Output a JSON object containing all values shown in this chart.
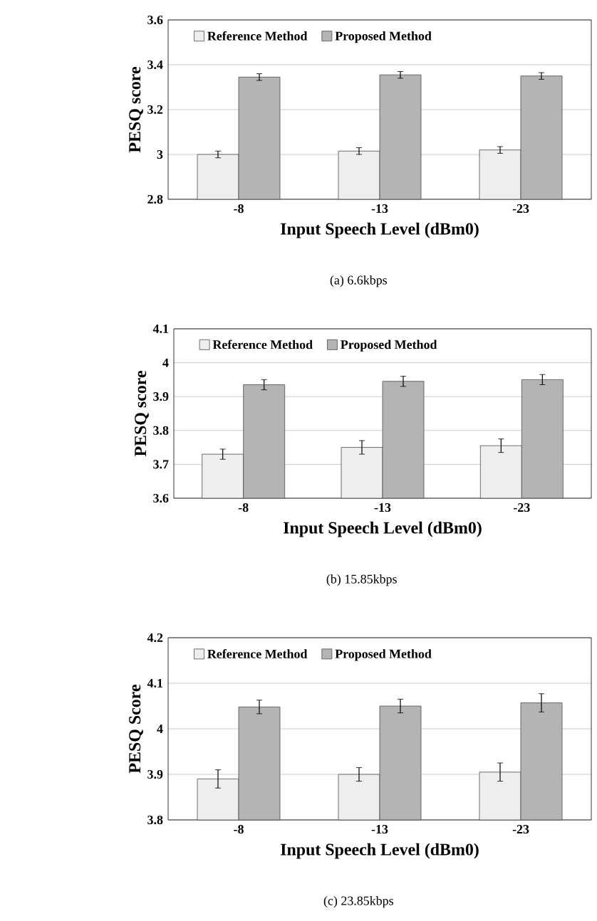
{
  "chart_data": [
    {
      "type": "bar",
      "categories": [
        "-8",
        "-13",
        "-23"
      ],
      "xlabel": "Input Speech Level (dBm0)",
      "ylabel": "PESQ score",
      "ylim": [
        2.8,
        3.6
      ],
      "yticks": [
        2.8,
        3,
        3.2,
        3.4,
        3.6
      ],
      "grid": "y",
      "legend": "top left",
      "annotations": [
        "(a) 6.6kbps"
      ],
      "series": [
        {
          "name": "Reference Method",
          "color": "#eeeeee",
          "values": [
            3.0,
            3.015,
            3.02
          ],
          "errors": [
            0.015,
            0.015,
            0.015
          ]
        },
        {
          "name": "Proposed Method",
          "color": "#b4b4b4",
          "values": [
            3.345,
            3.355,
            3.35
          ],
          "errors": [
            0.015,
            0.015,
            0.015
          ]
        }
      ]
    },
    {
      "type": "bar",
      "categories": [
        "-8",
        "-13",
        "-23"
      ],
      "xlabel": "Input Speech Level (dBm0)",
      "ylabel": "PESQ score",
      "ylim": [
        3.6,
        4.1
      ],
      "yticks": [
        3.6,
        3.7,
        3.8,
        3.9,
        4,
        4.1
      ],
      "grid": "y",
      "legend": "top left",
      "annotations": [
        "(b) 15.85kbps"
      ],
      "series": [
        {
          "name": "Reference Method",
          "color": "#eeeeee",
          "values": [
            3.73,
            3.75,
            3.755
          ],
          "errors": [
            0.015,
            0.02,
            0.02
          ]
        },
        {
          "name": "Proposed Method",
          "color": "#b4b4b4",
          "values": [
            3.935,
            3.945,
            3.95
          ],
          "errors": [
            0.015,
            0.015,
            0.015
          ]
        }
      ]
    },
    {
      "type": "bar",
      "categories": [
        "-8",
        "-13",
        "-23"
      ],
      "xlabel": "Input Speech Level (dBm0)",
      "ylabel": "PESQ Score",
      "ylim": [
        3.8,
        4.2
      ],
      "yticks": [
        3.8,
        3.9,
        4,
        4.1,
        4.2
      ],
      "grid": "y",
      "legend": "top left",
      "annotations": [
        "(c) 23.85kbps"
      ],
      "series": [
        {
          "name": "Reference Method",
          "color": "#eeeeee",
          "values": [
            3.89,
            3.9,
            3.905
          ],
          "errors": [
            0.02,
            0.015,
            0.02
          ]
        },
        {
          "name": "Proposed Method",
          "color": "#b4b4b4",
          "values": [
            4.048,
            4.05,
            4.057
          ],
          "errors": [
            0.015,
            0.015,
            0.02
          ]
        }
      ]
    }
  ]
}
